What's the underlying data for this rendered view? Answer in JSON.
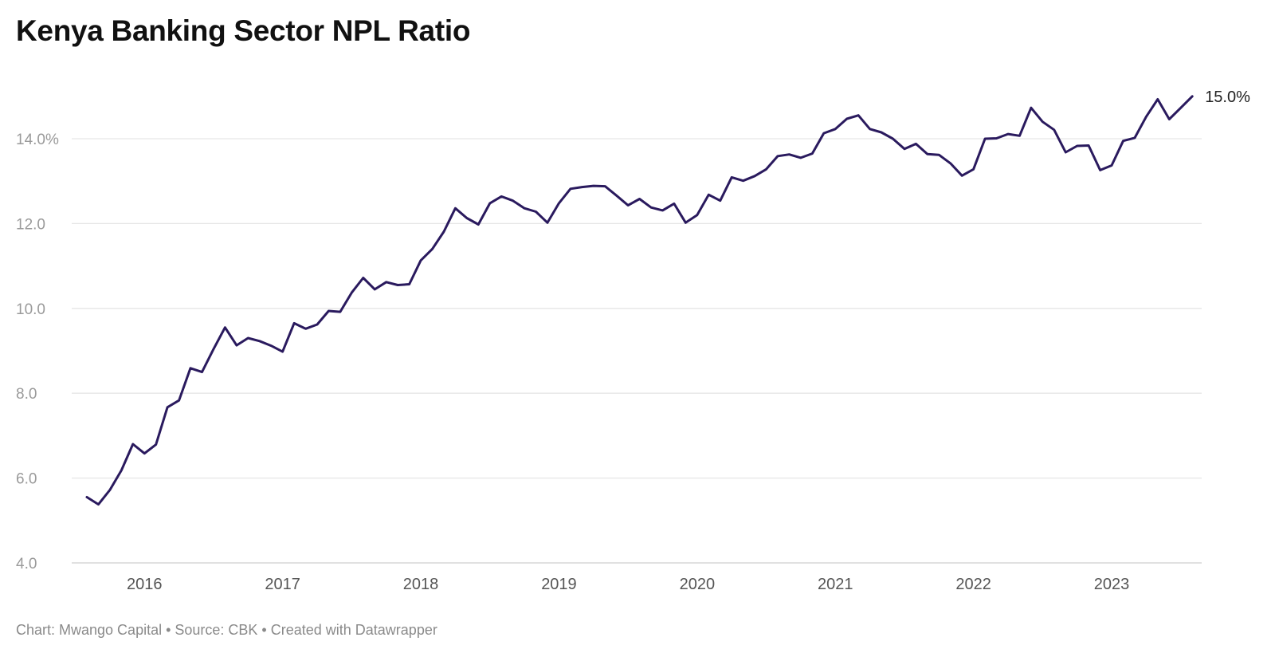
{
  "title": "Kenya Banking Sector NPL Ratio",
  "footer": "Chart: Mwango Capital • Source: CBK • Created with Datawrapper",
  "colors": {
    "line": "#2a1a5e",
    "grid": "#e6e6e6",
    "tick": "#9a9a9a"
  },
  "chart_data": {
    "type": "line",
    "title": "Kenya Banking Sector NPL Ratio",
    "xlabel": "",
    "ylabel": "",
    "ylim": [
      4,
      15
    ],
    "xlim": [
      "2015-07",
      "2023-08"
    ],
    "yticks": [
      {
        "value": 4,
        "label": "4.0"
      },
      {
        "value": 6,
        "label": "6.0"
      },
      {
        "value": 8,
        "label": "8.0"
      },
      {
        "value": 10,
        "label": "10.0"
      },
      {
        "value": 12,
        "label": "12.0"
      },
      {
        "value": 14,
        "label": "14.0%"
      }
    ],
    "xticks": [
      "2016",
      "2017",
      "2018",
      "2019",
      "2020",
      "2021",
      "2022",
      "2023"
    ],
    "grid": true,
    "end_label": "15.0%",
    "series": [
      {
        "color": "#2a1a5e",
        "x": [
          "2015-08",
          "2015-09",
          "2015-10",
          "2015-11",
          "2015-12",
          "2016-01",
          "2016-02",
          "2016-03",
          "2016-04",
          "2016-05",
          "2016-06",
          "2016-07",
          "2016-08",
          "2016-09",
          "2016-10",
          "2016-11",
          "2016-12",
          "2017-01",
          "2017-02",
          "2017-03",
          "2017-04",
          "2017-05",
          "2017-06",
          "2017-07",
          "2017-08",
          "2017-09",
          "2017-10",
          "2017-11",
          "2017-12",
          "2018-01",
          "2018-02",
          "2018-03",
          "2018-04",
          "2018-05",
          "2018-06",
          "2018-07",
          "2018-08",
          "2018-09",
          "2018-10",
          "2018-11",
          "2018-12",
          "2019-01",
          "2019-02",
          "2019-03",
          "2019-04",
          "2019-05",
          "2019-06",
          "2019-07",
          "2019-08",
          "2019-09",
          "2019-10",
          "2019-11",
          "2019-12",
          "2020-01",
          "2020-02",
          "2020-03",
          "2020-04",
          "2020-05",
          "2020-06",
          "2020-07",
          "2020-08",
          "2020-09",
          "2020-10",
          "2020-11",
          "2020-12",
          "2021-01",
          "2021-02",
          "2021-03",
          "2021-04",
          "2021-05",
          "2021-06",
          "2021-07",
          "2021-08",
          "2021-09",
          "2021-10",
          "2021-11",
          "2021-12",
          "2022-01",
          "2022-02",
          "2022-03",
          "2022-04",
          "2022-05",
          "2022-06",
          "2022-07",
          "2022-08",
          "2022-09",
          "2022-10",
          "2022-11",
          "2022-12",
          "2023-01",
          "2023-02",
          "2023-03",
          "2023-04",
          "2023-05",
          "2023-06",
          "2023-07",
          "2023-08"
        ],
        "values": [
          5.55,
          5.38,
          5.72,
          6.18,
          6.8,
          6.58,
          6.79,
          7.67,
          7.83,
          8.59,
          8.5,
          9.04,
          9.55,
          9.13,
          9.3,
          9.23,
          9.12,
          8.98,
          9.65,
          9.52,
          9.62,
          9.94,
          9.92,
          10.37,
          10.72,
          10.45,
          10.62,
          10.55,
          10.57,
          11.13,
          11.4,
          11.81,
          12.36,
          12.13,
          11.98,
          12.48,
          12.64,
          12.54,
          12.36,
          12.28,
          12.02,
          12.48,
          12.82,
          12.86,
          12.89,
          12.88,
          12.66,
          12.43,
          12.58,
          12.38,
          12.31,
          12.47,
          12.02,
          12.2,
          12.68,
          12.54,
          13.09,
          13.01,
          13.12,
          13.28,
          13.59,
          13.63,
          13.55,
          13.65,
          14.13,
          14.23,
          14.47,
          14.55,
          14.23,
          14.15,
          14.0,
          13.76,
          13.88,
          13.64,
          13.62,
          13.42,
          13.13,
          13.28,
          14.0,
          14.01,
          14.11,
          14.07,
          14.73,
          14.4,
          14.21,
          13.68,
          13.83,
          13.84,
          13.26,
          13.37,
          13.95,
          14.02,
          14.52,
          14.93,
          14.46,
          14.73,
          15.0
        ]
      }
    ]
  }
}
